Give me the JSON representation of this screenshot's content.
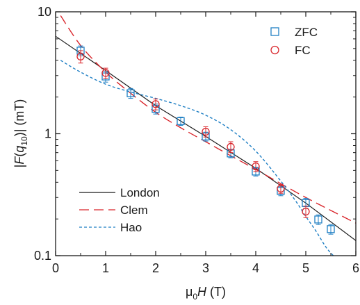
{
  "chart_data": {
    "type": "scatter",
    "xlabel": {
      "prefix": "μ",
      "sub": "0",
      "italic": "H",
      "suffix": " (T)"
    },
    "ylabel": {
      "pre": "|",
      "italic": "F",
      "mid": "(",
      "q": "q",
      "sub": "10",
      "post": ")| (mT)"
    },
    "x_ticks": [
      "0",
      "1",
      "2",
      "3",
      "4",
      "5",
      "6"
    ],
    "y_ticks": [
      "0.1",
      "1",
      "10"
    ],
    "xlim": [
      0,
      6
    ],
    "ylim": [
      0.1,
      10
    ],
    "y_scale": "log",
    "grid": false,
    "legend_markers_placement": "top-right",
    "legend_lines_placement": "bottom-left",
    "marker_series": [
      {
        "name": "ZFC",
        "marker": "square",
        "color": "#1f7fc4",
        "points": [
          {
            "x": 0.5,
            "y": 4.8,
            "err": 0.45
          },
          {
            "x": 1.0,
            "y": 2.95,
            "err": 0.3
          },
          {
            "x": 1.5,
            "y": 2.15,
            "err": 0.2
          },
          {
            "x": 2.0,
            "y": 1.6,
            "err": 0.15
          },
          {
            "x": 2.5,
            "y": 1.27,
            "err": 0.1
          },
          {
            "x": 3.0,
            "y": 0.95,
            "err": 0.08
          },
          {
            "x": 3.5,
            "y": 0.69,
            "err": 0.055
          },
          {
            "x": 4.0,
            "y": 0.49,
            "err": 0.04
          },
          {
            "x": 4.5,
            "y": 0.34,
            "err": 0.03
          },
          {
            "x": 5.0,
            "y": 0.27,
            "err": 0.025
          },
          {
            "x": 5.25,
            "y": 0.198,
            "err": 0.018
          },
          {
            "x": 5.5,
            "y": 0.165,
            "err": 0.015
          }
        ]
      },
      {
        "name": "FC",
        "marker": "circle",
        "color": "#d9262c",
        "points": [
          {
            "x": 0.5,
            "y": 4.3,
            "err": 0.5
          },
          {
            "x": 1.0,
            "y": 3.15,
            "err": 0.3
          },
          {
            "x": 2.0,
            "y": 1.75,
            "err": 0.18
          },
          {
            "x": 3.0,
            "y": 1.04,
            "err": 0.1
          },
          {
            "x": 3.5,
            "y": 0.78,
            "err": 0.08
          },
          {
            "x": 4.0,
            "y": 0.54,
            "err": 0.05
          },
          {
            "x": 4.5,
            "y": 0.355,
            "err": 0.03
          },
          {
            "x": 5.0,
            "y": 0.23,
            "err": 0.025
          }
        ]
      }
    ],
    "line_series": [
      {
        "name": "London",
        "style": "solid",
        "color": "#1a1a1a",
        "x": [
          0.0,
          1.0,
          2.0,
          3.0,
          4.0,
          5.0,
          6.0
        ],
        "y": [
          6.3,
          3.3,
          1.7,
          0.95,
          0.52,
          0.27,
          0.133
        ]
      },
      {
        "name": "Clem",
        "style": "long-dash",
        "color": "#d9262c",
        "x": [
          0.1,
          0.5,
          1.0,
          1.5,
          2.0,
          2.5,
          3.0,
          3.5,
          4.0,
          4.5,
          5.0,
          5.5,
          6.0
        ],
        "y": [
          9.3,
          5.3,
          3.2,
          2.15,
          1.5,
          1.12,
          0.86,
          0.66,
          0.51,
          0.39,
          0.3,
          0.235,
          0.185
        ]
      },
      {
        "name": "Hao",
        "style": "short-dash",
        "color": "#1f7fc4",
        "x": [
          0.1,
          0.5,
          1.0,
          1.5,
          2.0,
          2.5,
          3.0,
          3.5,
          4.0,
          4.5,
          4.8,
          5.0,
          5.2,
          5.4,
          5.55
        ],
        "y": [
          4.0,
          3.2,
          2.55,
          2.2,
          1.95,
          1.7,
          1.42,
          1.08,
          0.72,
          0.41,
          0.28,
          0.21,
          0.16,
          0.118,
          0.1
        ]
      }
    ]
  }
}
